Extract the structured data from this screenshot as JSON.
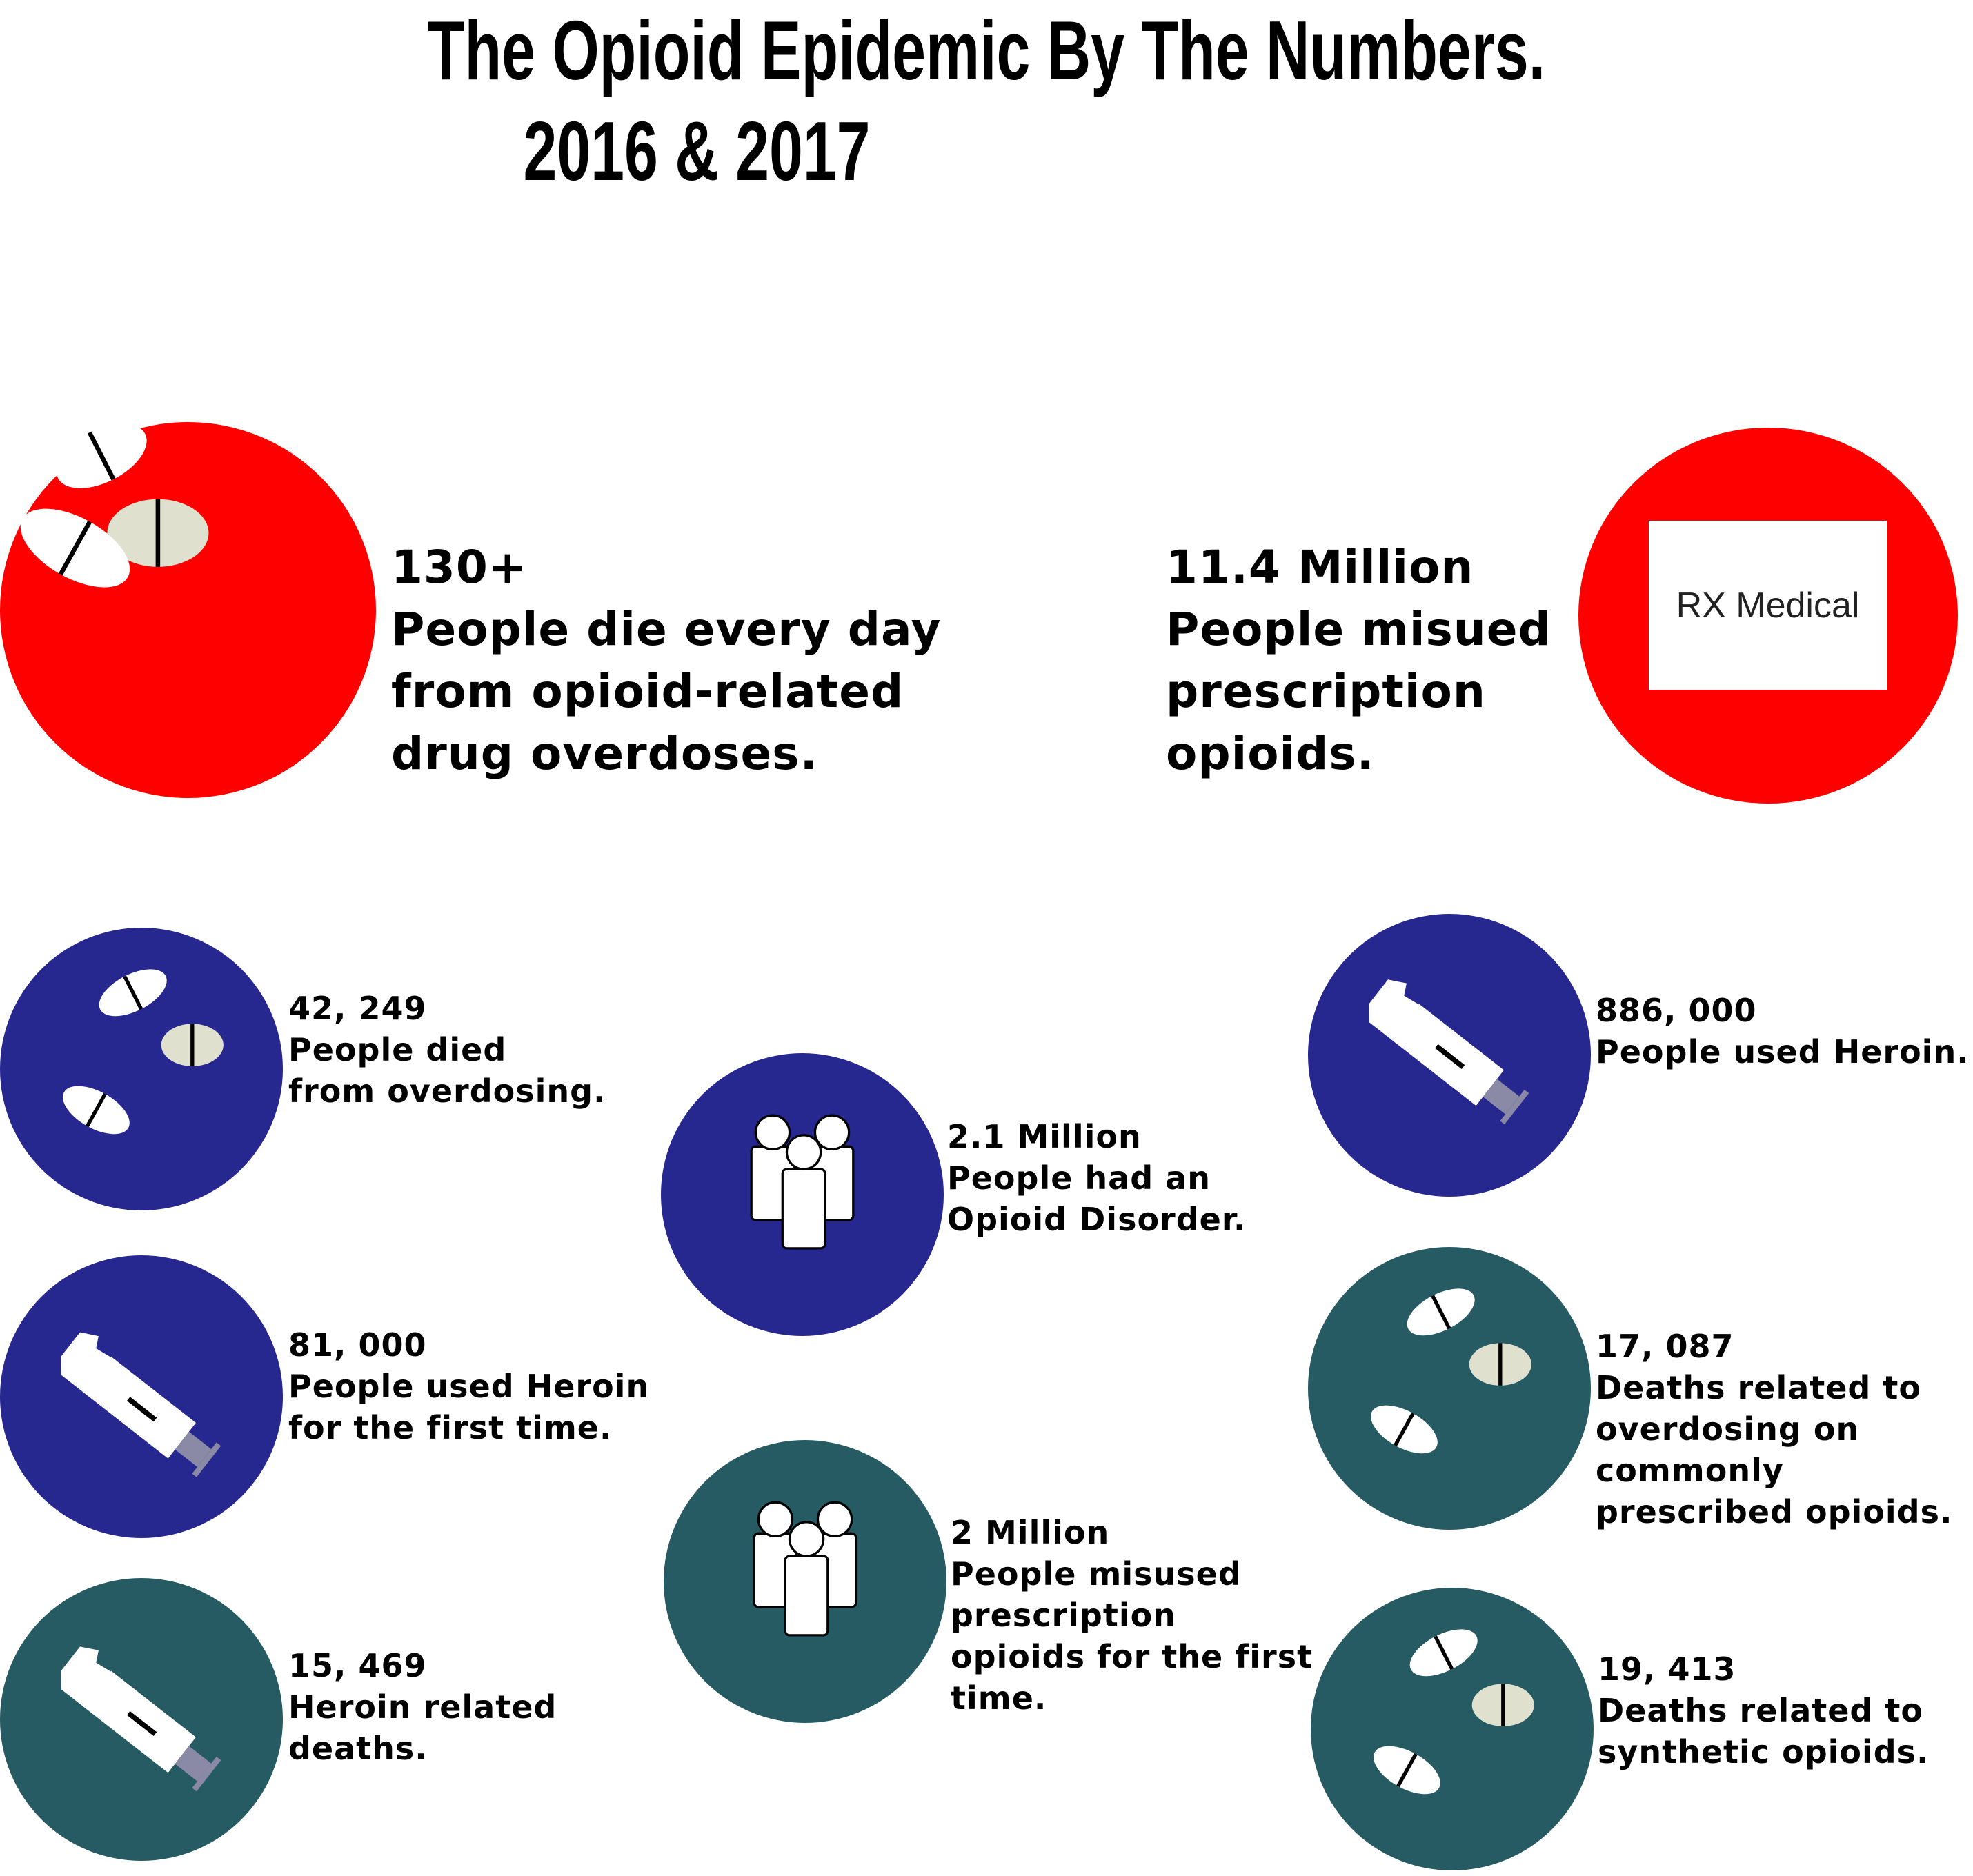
{
  "title": {
    "line1": "The Opioid Epidemic By The Numbers.",
    "line2": "2016 &  2017"
  },
  "colors": {
    "red": "#ff0000",
    "navy": "#262890",
    "teal": "#265b63",
    "pill_cream": "#e0e0cf",
    "syringe_plunger": "#8a8aa6"
  },
  "stats_large": [
    {
      "number": "130+",
      "lines": [
        "People die every day",
        "from opioid-related",
        "drug overdoses."
      ],
      "icon": "pills-icon"
    },
    {
      "number": "11.4 Million",
      "lines": [
        "People misued",
        "prescription",
        "opioids."
      ],
      "icon": "rx-box-icon",
      "box_label": "RX Medical"
    }
  ],
  "stats_small": [
    {
      "number": "42, 249",
      "lines": [
        "People died",
        "from overdosing."
      ],
      "icon": "pills-icon"
    },
    {
      "number": "81, 000",
      "lines": [
        "People used Heroin",
        "for the first time."
      ],
      "icon": "syringe-icon"
    },
    {
      "number": "15, 469",
      "lines": [
        "Heroin related",
        "deaths."
      ],
      "icon": "syringe-icon"
    },
    {
      "number": "2.1 Million",
      "lines": [
        "People had an",
        "Opioid Disorder."
      ],
      "icon": "people-icon"
    },
    {
      "number": "2 Million",
      "lines": [
        "People misused",
        "prescription",
        "opioids for the first",
        "time."
      ],
      "icon": "people-icon"
    },
    {
      "number": "886, 000",
      "lines": [
        "People used Heroin."
      ],
      "icon": "syringe-icon"
    },
    {
      "number": "17, 087",
      "lines": [
        "Deaths related to",
        "overdosing on",
        "commonly",
        "prescribed opioids."
      ],
      "icon": "pills-icon"
    },
    {
      "number": "19, 413",
      "lines": [
        "Deaths related to",
        "synthetic opioids."
      ],
      "icon": "pills-icon"
    }
  ]
}
